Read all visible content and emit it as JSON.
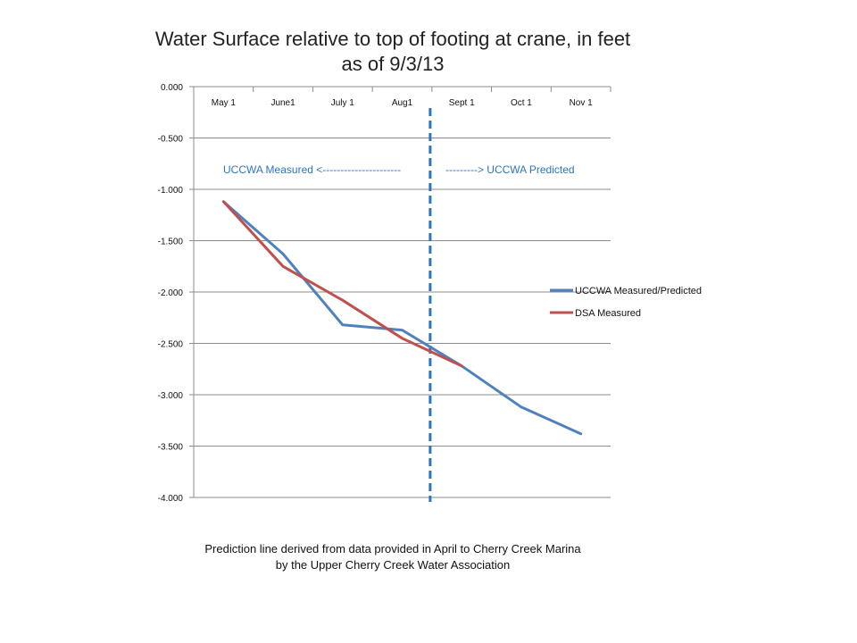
{
  "chart_data": {
    "type": "line",
    "title_line1": "Water Surface relative to top of footing at crane, in feet",
    "title_line2": "as of 9/3/13",
    "categories": [
      "May 1",
      "June1",
      "July 1",
      "Aug1",
      "Sept 1",
      "Oct 1",
      "Nov 1"
    ],
    "ylim": [
      -4.0,
      0.0
    ],
    "yticks": [
      "0.000",
      "-0.500",
      "-1.000",
      "-1.500",
      "-2.000",
      "-2.500",
      "-3.000",
      "-3.500",
      "-4.000"
    ],
    "series": [
      {
        "name": "UCCWA Measured/Predicted",
        "color": "#4f81bd",
        "points": [
          [
            0,
            -1.12
          ],
          [
            1,
            -1.63
          ],
          [
            2,
            -2.32
          ],
          [
            3,
            -2.37
          ],
          [
            4,
            -2.72
          ],
          [
            5,
            -3.12
          ],
          [
            6,
            -3.38
          ]
        ]
      },
      {
        "name": "DSA Measured",
        "color": "#c0504d",
        "points": [
          [
            0,
            -1.12
          ],
          [
            1,
            -1.75
          ],
          [
            2,
            -2.08
          ],
          [
            3,
            -2.45
          ],
          [
            4,
            -2.72
          ]
        ]
      }
    ],
    "divider": {
      "x": 3.5,
      "style": "dashed",
      "color": "#2e75c0"
    },
    "annotations": {
      "left": "UCCWA  Measured <----------------------",
      "right": "---------> UCCWA Predicted"
    },
    "legend_position": "right",
    "grid": "horizontal"
  },
  "caption": {
    "line1": "Prediction line derived from data provided  in April to Cherry Creek Marina",
    "line2": "by the Upper  Cherry Creek Water Association"
  }
}
